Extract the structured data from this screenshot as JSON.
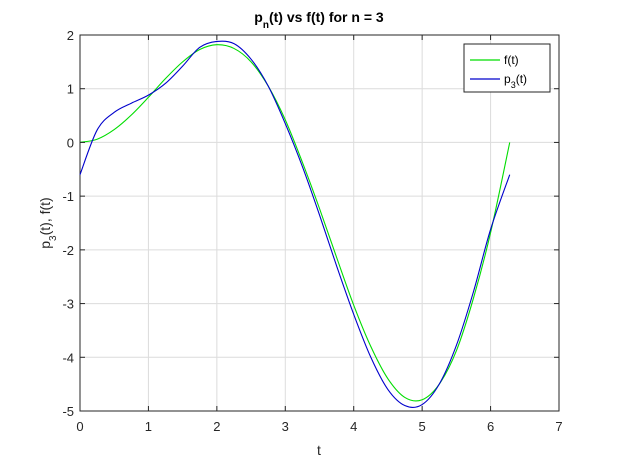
{
  "colors": {
    "f": "#00dd00",
    "p": "#0000cc",
    "grid": "#dcdcdc",
    "axis": "#262626"
  },
  "chart_data": {
    "type": "line",
    "title": {
      "base": "p",
      "sub": "n",
      "rest": "(t) vs f(t) for n = 3"
    },
    "xlabel": "t",
    "ylabel": {
      "base": "p",
      "sub": "3",
      "rest": "(t), f(t)"
    },
    "xlim": [
      0,
      7
    ],
    "ylim": [
      -5,
      2
    ],
    "xticks": [
      "0",
      "1",
      "2",
      "3",
      "4",
      "5",
      "6",
      "7"
    ],
    "yticks": [
      "2",
      "1",
      "0",
      "-1",
      "-2",
      "-3",
      "-4",
      "-5"
    ],
    "grid": true,
    "legend": {
      "position": "top-right"
    },
    "series": [
      {
        "name": "f(t)",
        "color": "#00dd00",
        "x": [
          0,
          0.25,
          0.5,
          0.75,
          1.0,
          1.25,
          1.5,
          1.75,
          2.0,
          2.25,
          2.5,
          2.75,
          3.0,
          3.25,
          3.5,
          3.75,
          4.0,
          4.25,
          4.5,
          4.75,
          5.0,
          5.25,
          5.5,
          5.75,
          6.0,
          6.28
        ],
        "y": [
          0.0,
          0.06,
          0.24,
          0.51,
          0.84,
          1.19,
          1.5,
          1.73,
          1.82,
          1.75,
          1.5,
          1.05,
          0.42,
          -0.37,
          -1.23,
          -2.14,
          -3.03,
          -3.8,
          -4.4,
          -4.75,
          -4.79,
          -4.5,
          -3.88,
          -2.9,
          -1.68,
          0.0
        ]
      },
      {
        "name": "p",
        "label_base": "p",
        "label_sub": "3",
        "label_rest": "(t)",
        "color": "#0000cc",
        "x": [
          0,
          0.25,
          0.5,
          0.75,
          1.0,
          1.25,
          1.5,
          1.75,
          2.0,
          2.25,
          2.5,
          2.75,
          3.0,
          3.25,
          3.5,
          3.75,
          4.0,
          4.25,
          4.5,
          4.75,
          5.0,
          5.25,
          5.5,
          5.75,
          6.0,
          6.28
        ],
        "y": [
          -0.6,
          0.23,
          0.56,
          0.73,
          0.88,
          1.1,
          1.42,
          1.77,
          1.88,
          1.84,
          1.55,
          1.05,
          0.35,
          -0.45,
          -1.35,
          -2.3,
          -3.2,
          -4.0,
          -4.6,
          -4.9,
          -4.88,
          -4.5,
          -3.78,
          -2.78,
          -1.62,
          -0.6
        ]
      }
    ]
  }
}
